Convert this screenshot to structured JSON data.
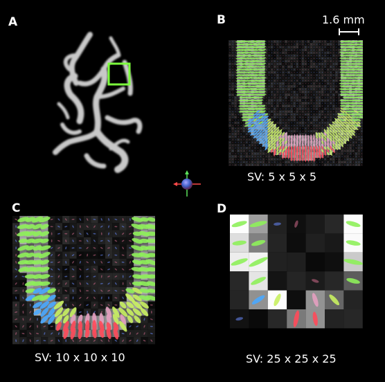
{
  "figure": {
    "panels": [
      {
        "id": "A",
        "letter": "A"
      },
      {
        "id": "B",
        "letter": "B",
        "caption": "SV: 5 x 5 x 5"
      },
      {
        "id": "C",
        "letter": "C",
        "caption": "SV: 10 x 10 x 10"
      },
      {
        "id": "D",
        "letter": "D",
        "caption": "SV: 25 x 25 x 25"
      }
    ],
    "scale_bar": {
      "label": "1.6 mm"
    },
    "colors": {
      "background": "#000000",
      "roi_box": "#7cff3c",
      "fiber_green": "#8ef05a",
      "fiber_yellow": "#e4f060",
      "fiber_blue": "#4aa8ff",
      "fiber_red": "#ff4a5a",
      "tissue_gray": "#bbbbbb"
    },
    "orientation_icon": "rgb-orientation-glyph-icon"
  }
}
